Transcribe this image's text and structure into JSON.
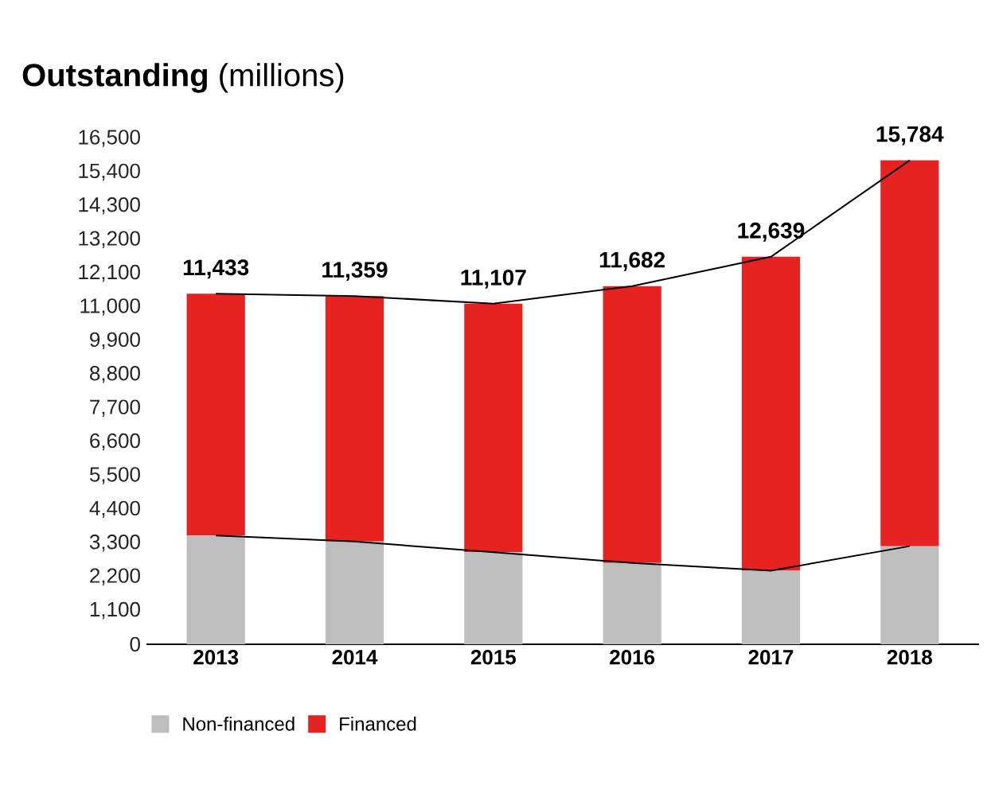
{
  "chart_data": {
    "type": "bar",
    "title": "**Outstanding** (millions)",
    "stacked": true,
    "categories": [
      "2013",
      "2014",
      "2015",
      "2016",
      "2017",
      "2018"
    ],
    "series": [
      {
        "name": "Non-financed",
        "color": "#bebebe",
        "values": [
          3550,
          3350,
          3000,
          2650,
          2400,
          3200
        ]
      },
      {
        "name": "Financed",
        "color": "#e52421",
        "values": [
          7883,
          8009,
          8107,
          9032,
          10239,
          12584
        ]
      },
      {
        "type": "line",
        "color": "#000000",
        "values": [
          3550,
          3350,
          3000,
          2650,
          2400,
          3200
        ]
      },
      {
        "type": "line",
        "color": "#000000",
        "values": [
          11433,
          11359,
          11107,
          11682,
          12639,
          15784
        ]
      }
    ],
    "totals": [
      "11,433",
      "11,359",
      "11,107",
      "11,682",
      "12,639",
      "15,784"
    ],
    "ylim": [
      0,
      16500
    ],
    "yticks": [
      {
        "value": 0,
        "label": "0"
      },
      {
        "value": 1100,
        "label": "1,100"
      },
      {
        "value": 2200,
        "label": "2,200"
      },
      {
        "value": 3300,
        "label": "3,300"
      },
      {
        "value": 4400,
        "label": "4,400"
      },
      {
        "value": 5500,
        "label": "5,500"
      },
      {
        "value": 6600,
        "label": "6,600"
      },
      {
        "value": 7700,
        "label": "7,700"
      },
      {
        "value": 8800,
        "label": "8,800"
      },
      {
        "value": 9900,
        "label": "9,900"
      },
      {
        "value": 11000,
        "label": "11,000"
      },
      {
        "value": 12100,
        "label": "12,100"
      },
      {
        "value": 13200,
        "label": "13,200"
      },
      {
        "value": 14300,
        "label": "14,300"
      },
      {
        "value": 15400,
        "label": "15,400"
      },
      {
        "value": 16500,
        "label": "16,500"
      }
    ],
    "legend": "bottom left"
  }
}
